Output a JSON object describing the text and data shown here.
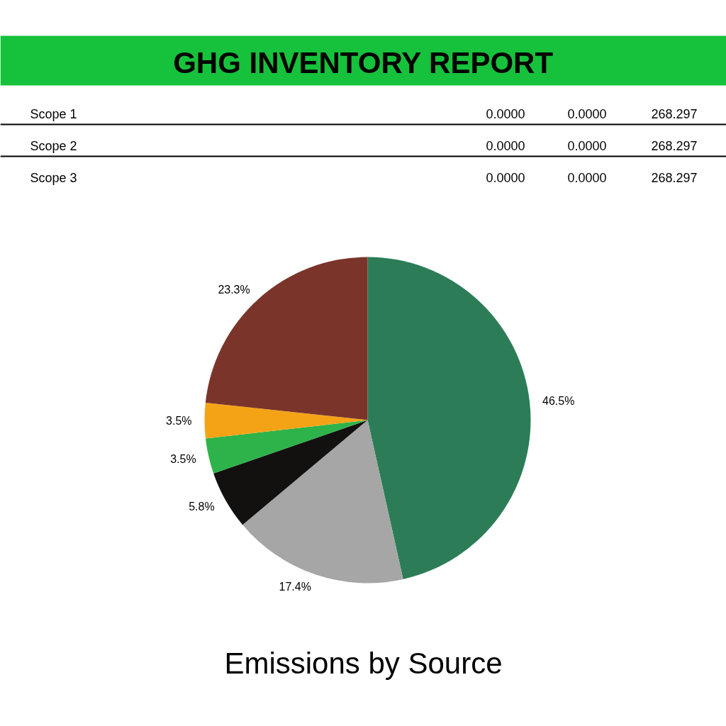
{
  "chart_data": [
    {
      "type": "other",
      "title": "GHG INVENTORY REPORT",
      "annotations": [
        "Scope 1",
        "0.0000",
        "0.0000",
        "268.297",
        "Scope 2",
        "0.0000",
        "0.0000",
        "268.297",
        "Scope 3",
        "0.0000",
        "0.0000",
        "268.297"
      ],
      "color": "#16c23b"
    },
    {
      "type": "pie",
      "title": "Emissions by Source",
      "categories": [
        null,
        null,
        null,
        null,
        null,
        null
      ],
      "values": [
        46.5,
        17.4,
        5.8,
        3.5,
        3.5,
        23.3
      ],
      "value_labels": [
        "46.5%",
        "17.4%",
        "5.8%",
        "3.5%",
        "3.5%",
        "23.3%"
      ],
      "colors": [
        "#2c7d57",
        "#a6a6a6",
        "#121110",
        "#2db34a",
        "#f4a316",
        "#7b342a"
      ]
    }
  ]
}
